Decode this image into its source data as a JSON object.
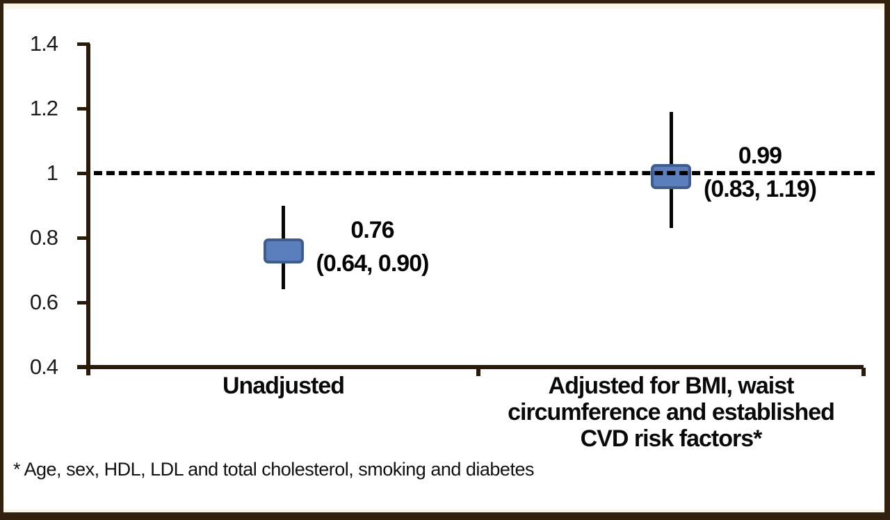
{
  "figure": {
    "background": "#ffffff",
    "border_color": "#33210f",
    "axis_color": "#2a1a09"
  },
  "chart_data": {
    "type": "scatter",
    "subtype": "forest-plot-point-estimates-with-ci",
    "title": "",
    "xlabel": "",
    "ylabel": "",
    "ylim": [
      0.4,
      1.4
    ],
    "yticks": [
      1.4,
      1.2,
      1.0,
      0.8,
      0.6,
      0.4
    ],
    "ytick_labels": [
      "1.4",
      "1.2",
      "1",
      "0.8",
      "0.6",
      "0.4"
    ],
    "reference_line": 1.0,
    "reference_line_style": "dashed",
    "grid": "off",
    "legend": "none",
    "categories": [
      "Unadjusted",
      "Adjusted for BMI, waist circumference and established CVD risk factors*"
    ],
    "category_lines": [
      [
        "Unadjusted"
      ],
      [
        "Adjusted for BMI, waist",
        "circumference and established",
        "CVD risk factors*"
      ]
    ],
    "points": [
      {
        "category": "Unadjusted",
        "estimate": 0.76,
        "ci_low": 0.64,
        "ci_high": 0.9,
        "value_label": "0.76",
        "ci_label": "(0.64, 0.90)"
      },
      {
        "category": "Adjusted for BMI, waist circumference and established CVD risk factors*",
        "estimate": 0.99,
        "ci_low": 0.83,
        "ci_high": 1.19,
        "value_label": "0.99",
        "ci_label": "(0.83, 1.19)"
      }
    ],
    "marker_fill": "#5b7fbc",
    "marker_border": "#3e5c8e",
    "footnote": "* Age, sex, HDL, LDL and total cholesterol, smoking and diabetes"
  }
}
